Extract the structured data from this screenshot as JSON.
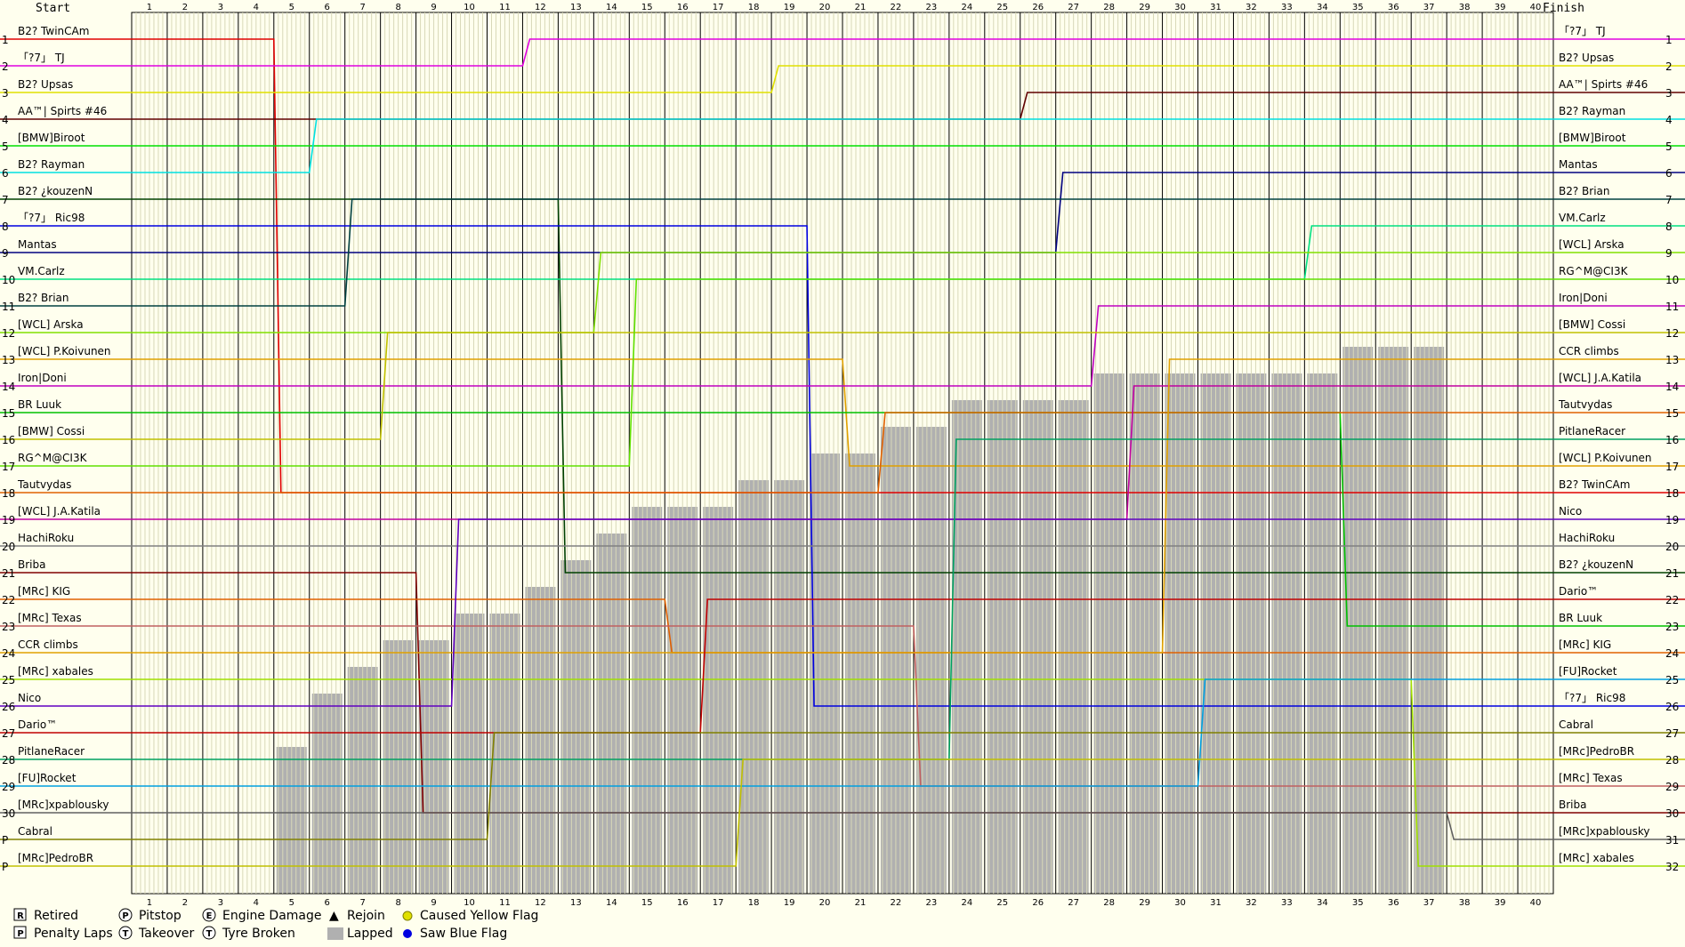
{
  "chart_data": {
    "type": "line",
    "header": {
      "start": "Start",
      "finish": "Finish"
    },
    "laps": [
      1,
      2,
      3,
      4,
      5,
      6,
      7,
      8,
      9,
      10,
      11,
      12,
      13,
      14,
      15,
      16,
      17,
      18,
      19,
      20,
      21,
      22,
      23,
      24,
      25,
      26,
      27,
      28,
      29,
      30,
      31,
      32,
      33,
      34,
      35,
      36,
      37,
      38,
      39,
      40
    ],
    "left_positions": [
      "1",
      "2",
      "3",
      "4",
      "5",
      "6",
      "7",
      "8",
      "9",
      "10",
      "11",
      "12",
      "13",
      "14",
      "15",
      "16",
      "17",
      "18",
      "19",
      "20",
      "21",
      "22",
      "23",
      "24",
      "25",
      "26",
      "27",
      "28",
      "29",
      "30",
      "P",
      "P"
    ],
    "right_positions": [
      "1",
      "2",
      "3",
      "4",
      "5",
      "6",
      "7",
      "8",
      "9",
      "10",
      "11",
      "12",
      "13",
      "14",
      "15",
      "16",
      "17",
      "18",
      "19",
      "20",
      "21",
      "22",
      "23",
      "24",
      "25",
      "26",
      "27",
      "28",
      "29",
      "30",
      "31",
      "32"
    ],
    "start_order": [
      "B2? TwinCAm",
      "「?7」 TJ",
      "B2? Upsas",
      "AA™| Spirts #46",
      "[BMW]Biroot",
      "B2? Rayman",
      "B2? ¿kouzenN",
      "「?7」 Ric98",
      "Mantas",
      "VM.Carlz",
      "B2? Brian",
      "[WCL] Arska",
      "[WCL] P.Koivunen",
      "Iron|Doni",
      "BR Luuk",
      "[BMW] Cossi",
      "RG^M@CI3K",
      "Tautvydas",
      "[WCL] J.A.Katila",
      "HachiRoku",
      "Briba",
      "[MRc] KIG",
      "[MRc] Texas",
      "CCR climbs",
      "[MRc] xabales",
      "Nico",
      "Dario™",
      "PitlaneRacer",
      "[FU]Rocket",
      "[MRc]xpablousky",
      "Cabral",
      "[MRc]PedroBR"
    ],
    "finish_order": [
      "「?7」 TJ",
      "B2? Upsas",
      "AA™| Spirts #46",
      "B2? Rayman",
      "[BMW]Biroot",
      "Mantas",
      "B2? Brian",
      "VM.Carlz",
      "[WCL] Arska",
      "RG^M@CI3K",
      "Iron|Doni",
      "[BMW] Cossi",
      "CCR climbs",
      "[WCL] J.A.Katila",
      "Tautvydas",
      "PitlaneRacer",
      "[WCL] P.Koivunen",
      "B2? TwinCAm",
      "Nico",
      "HachiRoku",
      "B2? ¿kouzenN",
      "Dario™",
      "BR Luuk",
      "[MRc] KIG",
      "[FU]Rocket",
      "「?7」 Ric98",
      "Cabral",
      "[MRc]PedroBR",
      "[MRc] Texas",
      "Briba",
      "[MRc]xpablousky",
      "[MRc] xabales"
    ],
    "colors": [
      "#e00000",
      "#e000e0",
      "#e0e000",
      "#600000",
      "#00e000",
      "#00e0e0",
      "#004000",
      "#0000e0",
      "#000080",
      "#00e080",
      "#004040",
      "#80e000",
      "#e0a000",
      "#c000c0",
      "#00c000",
      "#c0c000",
      "#60e000",
      "#e06000",
      "#c000a0",
      "#808080",
      "#800000",
      "#e06000",
      "#c06060",
      "#e0a000",
      "#a0e000",
      "#6000c0",
      "#c00000",
      "#00a060",
      "#00a0e0",
      "#606060",
      "#808000",
      "#c0c000"
    ],
    "lapped_from_bottom": [
      0,
      0,
      0,
      0,
      5,
      7,
      8,
      9,
      9,
      10,
      10,
      11,
      12,
      13,
      14,
      14,
      14,
      15,
      15,
      16,
      16,
      17,
      17,
      18,
      18,
      18,
      18,
      19,
      19,
      19,
      19,
      19,
      19,
      19,
      20,
      20,
      20,
      0,
      0,
      0
    ],
    "legend": [
      {
        "symbol": "R",
        "label": "Retired"
      },
      {
        "symbol": "P",
        "label": "Penalty Laps"
      },
      {
        "symbol": "P",
        "label": "Pitstop"
      },
      {
        "symbol": "T",
        "label": "Takeover"
      },
      {
        "symbol": "E",
        "label": "Engine Damage"
      },
      {
        "symbol": "T",
        "label": "Tyre Broken"
      },
      {
        "symbol": "▲",
        "label": "Rejoin"
      },
      {
        "symbol": "",
        "label": "Lapped"
      },
      {
        "symbol": "",
        "label": "Caused Yellow Flag"
      },
      {
        "symbol": "",
        "label": "Saw Blue Flag"
      }
    ]
  }
}
